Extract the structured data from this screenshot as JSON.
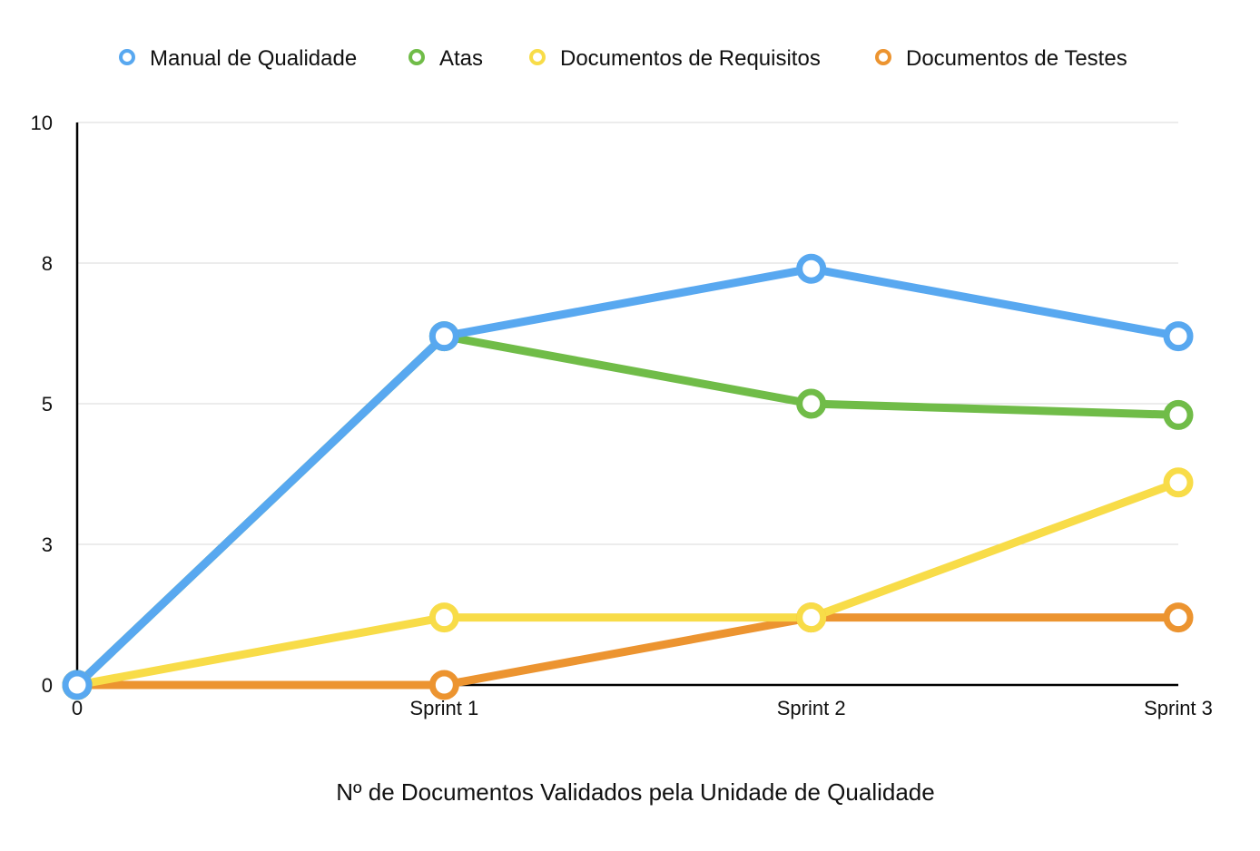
{
  "chart_data": {
    "type": "line",
    "title": "Nº de Documentos Validados pela Unidade de Qualidade",
    "xlabel": "",
    "ylabel": "",
    "categories": [
      "0",
      "Sprint 1",
      "Sprint 2",
      "Sprint 3"
    ],
    "ylim": [
      0,
      10
    ],
    "y_ticks": [
      0,
      3,
      5,
      8,
      10
    ],
    "grid": true,
    "legend": "top",
    "series": [
      {
        "name": "Manual de Qualidade",
        "color": "#58A8F0",
        "values": [
          0,
          6.2,
          7.4,
          6.2
        ]
      },
      {
        "name": "Atas",
        "color": "#70BC48",
        "values": [
          0,
          6.2,
          5.0,
          4.8
        ]
      },
      {
        "name": "Documentos de Requisitos",
        "color": "#F8DC48",
        "values": [
          0,
          1.2,
          1.2,
          3.6
        ]
      },
      {
        "name": "Documentos de Testes",
        "color": "#EC9430",
        "values": [
          0,
          0,
          1.2,
          1.2
        ]
      }
    ]
  }
}
